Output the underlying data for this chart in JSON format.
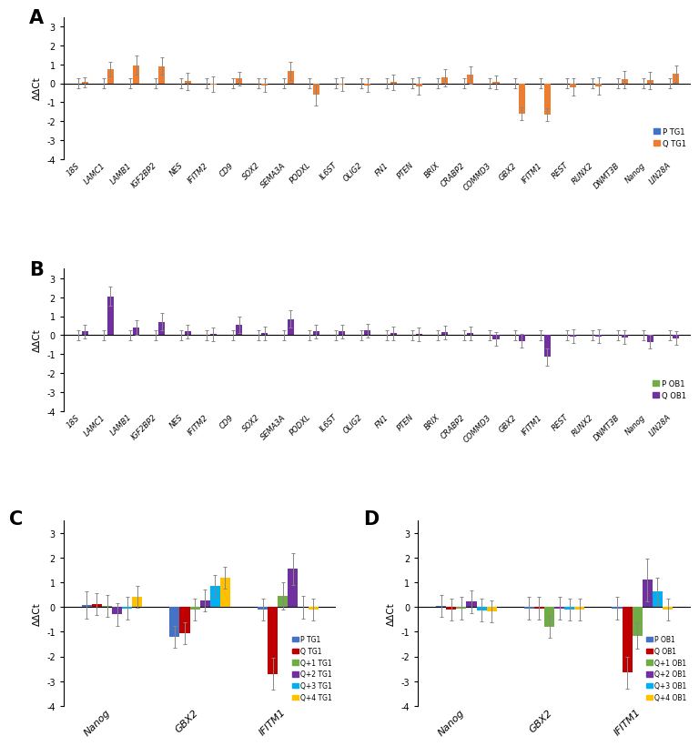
{
  "genes": [
    "18S",
    "LAMC1",
    "LAMB1",
    "IGF2BP2",
    "NES",
    "IFITM2",
    "CD9",
    "SOX2",
    "SEMA3A",
    "PODXL",
    "IL6ST",
    "OLIG2",
    "FN1",
    "PTEN",
    "BRIX",
    "CRABP2",
    "COMMD3",
    "GBX2",
    "IFITM1",
    "REST",
    "RUNX2",
    "DNMT3B",
    "Nanog",
    "LIN28A"
  ],
  "panelA_P_vals": [
    0,
    0,
    0,
    0,
    0,
    0,
    0,
    0,
    0,
    0,
    0,
    0,
    0,
    0,
    0,
    0,
    0,
    0,
    0,
    0,
    0,
    0,
    0,
    0
  ],
  "panelA_P_err": [
    0.25,
    0.25,
    0.25,
    0.25,
    0.25,
    0.25,
    0.25,
    0.25,
    0.25,
    0.25,
    0.25,
    0.25,
    0.25,
    0.25,
    0.25,
    0.25,
    0.25,
    0.25,
    0.25,
    0.25,
    0.25,
    0.25,
    0.25,
    0.25
  ],
  "panelA_Q_vals": [
    0.05,
    0.75,
    0.95,
    0.9,
    0.1,
    -0.05,
    0.25,
    -0.1,
    0.65,
    -0.6,
    -0.05,
    -0.1,
    0.05,
    -0.15,
    0.3,
    0.45,
    0.05,
    -1.6,
    -1.65,
    -0.2,
    -0.15,
    0.2,
    0.15,
    0.5
  ],
  "panelA_Q_err": [
    0.25,
    0.4,
    0.5,
    0.45,
    0.45,
    0.4,
    0.35,
    0.35,
    0.5,
    0.55,
    0.35,
    0.35,
    0.4,
    0.45,
    0.45,
    0.45,
    0.35,
    0.35,
    0.35,
    0.45,
    0.45,
    0.45,
    0.45,
    0.45
  ],
  "panelB_P_vals": [
    0,
    0,
    0,
    0,
    0,
    0,
    0,
    0,
    0,
    0,
    0,
    0,
    0,
    0,
    0,
    0,
    0,
    0,
    0,
    0,
    0,
    0,
    0,
    0
  ],
  "panelB_P_err": [
    0.25,
    0.25,
    0.25,
    0.25,
    0.25,
    0.25,
    0.25,
    0.25,
    0.25,
    0.25,
    0.25,
    0.25,
    0.25,
    0.25,
    0.25,
    0.25,
    0.25,
    0.25,
    0.25,
    0.25,
    0.25,
    0.25,
    0.25,
    0.25
  ],
  "panelB_Q_vals": [
    0.2,
    2.05,
    0.4,
    0.7,
    0.2,
    0.05,
    0.55,
    0.1,
    0.85,
    0.2,
    0.2,
    0.25,
    0.1,
    0.05,
    0.15,
    0.1,
    -0.2,
    -0.3,
    -1.15,
    -0.05,
    -0.05,
    -0.1,
    -0.35,
    -0.15
  ],
  "panelB_Q_err": [
    0.35,
    0.5,
    0.4,
    0.45,
    0.35,
    0.35,
    0.45,
    0.35,
    0.45,
    0.35,
    0.35,
    0.35,
    0.35,
    0.35,
    0.35,
    0.35,
    0.35,
    0.35,
    0.45,
    0.35,
    0.35,
    0.35,
    0.35,
    0.35
  ],
  "genes_cd": [
    "Nanog",
    "GBX2",
    "IFITM1"
  ],
  "panelC_vals": {
    "P TG1": [
      0.1,
      -1.2,
      -0.1
    ],
    "Q TG1": [
      0.12,
      -1.05,
      -2.7
    ],
    "Q+1 TG1": [
      0.05,
      -0.1,
      0.45
    ],
    "Q+2 TG1": [
      -0.3,
      0.28,
      1.55
    ],
    "Q+3 TG1": [
      -0.05,
      0.85,
      0.0
    ],
    "Q+4 TG1": [
      0.42,
      1.2,
      -0.1
    ]
  },
  "panelC_err": {
    "P TG1": [
      0.55,
      0.45,
      0.45
    ],
    "Q TG1": [
      0.45,
      0.45,
      0.65
    ],
    "Q+1 TG1": [
      0.45,
      0.45,
      0.55
    ],
    "Q+2 TG1": [
      0.45,
      0.45,
      0.65
    ],
    "Q+3 TG1": [
      0.45,
      0.45,
      0.45
    ],
    "Q+4 TG1": [
      0.45,
      0.45,
      0.45
    ]
  },
  "panelD_vals": {
    "P OB1": [
      0.05,
      -0.05,
      -0.05
    ],
    "Q OB1": [
      -0.1,
      -0.05,
      -2.65
    ],
    "Q+1 OB1": [
      -0.05,
      -0.8,
      -1.15
    ],
    "Q+2 OB1": [
      0.22,
      -0.05,
      1.1
    ],
    "Q+3 OB1": [
      -0.12,
      -0.1,
      0.65
    ],
    "Q+4 OB1": [
      -0.18,
      -0.1,
      -0.1
    ]
  },
  "panelD_err": {
    "P OB1": [
      0.45,
      0.45,
      0.45
    ],
    "Q OB1": [
      0.45,
      0.45,
      0.65
    ],
    "Q+1 OB1": [
      0.45,
      0.45,
      0.55
    ],
    "Q+2 OB1": [
      0.45,
      0.45,
      0.85
    ],
    "Q+3 OB1": [
      0.45,
      0.45,
      0.55
    ],
    "Q+4 OB1": [
      0.45,
      0.45,
      0.45
    ]
  },
  "color_P_TG1": "#4472C4",
  "color_Q_TG1": "#ED7D31",
  "color_P_OB1": "#70AD47",
  "color_Q_OB1": "#7030A0",
  "colors_CD_TG1": [
    "#4472C4",
    "#C00000",
    "#70AD47",
    "#7030A0",
    "#00B0F0",
    "#FFC000"
  ],
  "colors_CD_OB1": [
    "#4472C4",
    "#C00000",
    "#70AD47",
    "#7030A0",
    "#00B0F0",
    "#FFC000"
  ],
  "ylabel_AB": "ΔΔCt",
  "ylabel_CD": "ΔΔCt",
  "ylim_AB": [
    -4,
    3.5
  ],
  "ylim_CD": [
    -4,
    3.5
  ],
  "yticks_AB": [
    -4,
    -3,
    -2,
    -1,
    0,
    1,
    2,
    3
  ],
  "yticks_CD": [
    -4,
    -3,
    -2,
    -1,
    0,
    1,
    2,
    3
  ],
  "panel_labels": [
    "A",
    "B",
    "C",
    "D"
  ],
  "bg_color": "#FFFFFF"
}
